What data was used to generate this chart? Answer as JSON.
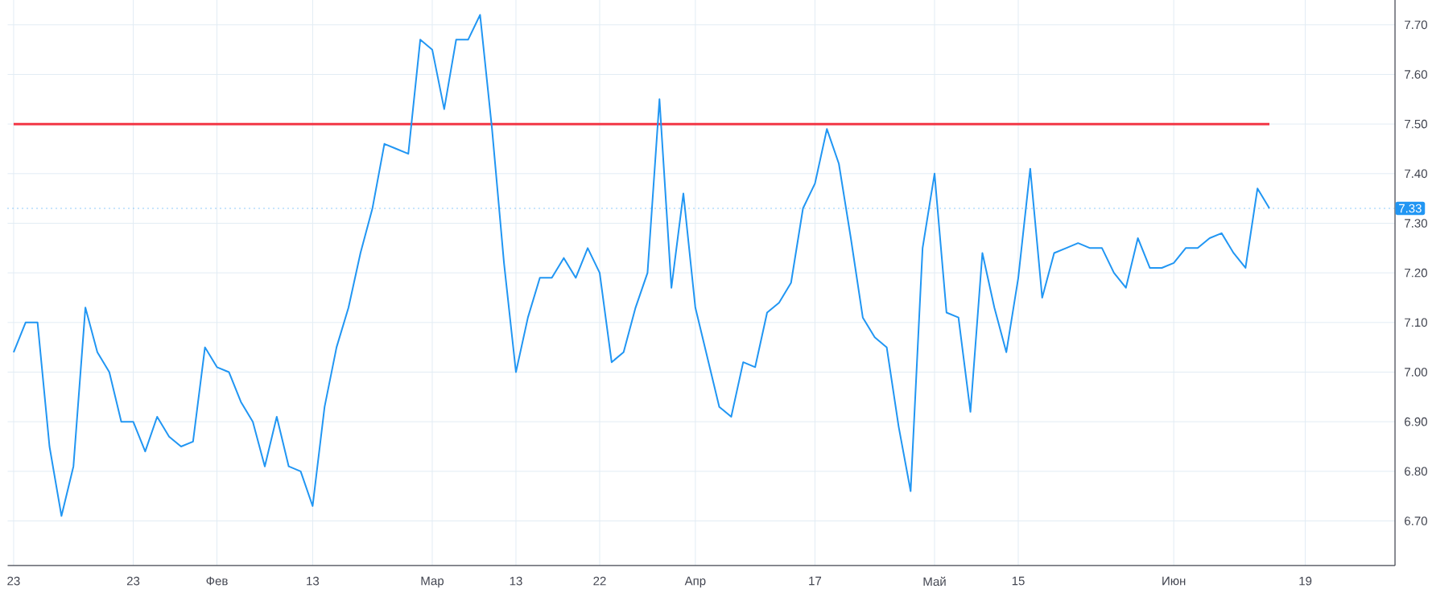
{
  "chart_data": {
    "type": "line",
    "categories": [
      "23",
      null,
      null,
      null,
      null,
      null,
      null,
      null,
      null,
      null,
      "23",
      null,
      null,
      null,
      null,
      null,
      null,
      "Фев",
      null,
      null,
      null,
      null,
      null,
      null,
      null,
      "13",
      null,
      null,
      null,
      null,
      null,
      null,
      null,
      null,
      null,
      "Мар",
      null,
      null,
      null,
      null,
      null,
      null,
      "13",
      null,
      null,
      null,
      null,
      null,
      null,
      "22",
      null,
      null,
      null,
      null,
      null,
      null,
      null,
      "Апр",
      null,
      null,
      null,
      null,
      null,
      null,
      null,
      null,
      null,
      "17",
      null,
      null,
      null,
      null,
      null,
      null,
      null,
      null,
      null,
      "Май",
      null,
      null,
      null,
      null,
      null,
      null,
      "15",
      null,
      null,
      null,
      null,
      null,
      null,
      null,
      null,
      null,
      null,
      null,
      null,
      "Июн",
      null,
      null,
      null,
      null,
      null,
      null,
      null,
      null,
      null,
      null,
      "19",
      null,
      null,
      null,
      null,
      null,
      null,
      null
    ],
    "values": [
      7.04,
      7.1,
      7.1,
      6.85,
      6.71,
      6.81,
      7.13,
      7.04,
      7.0,
      6.9,
      6.9,
      6.84,
      6.91,
      6.87,
      6.85,
      6.86,
      7.05,
      7.01,
      7.0,
      6.94,
      6.9,
      6.81,
      6.91,
      6.81,
      6.8,
      6.73,
      6.93,
      7.05,
      7.13,
      7.24,
      7.33,
      7.46,
      7.45,
      7.44,
      7.67,
      7.65,
      7.53,
      7.67,
      7.67,
      7.72,
      7.49,
      7.22,
      7.0,
      7.11,
      7.19,
      7.19,
      7.23,
      7.19,
      7.25,
      7.2,
      7.02,
      7.04,
      7.13,
      7.2,
      7.55,
      7.17,
      7.36,
      7.13,
      7.03,
      6.93,
      6.91,
      7.02,
      7.01,
      7.12,
      7.14,
      7.18,
      7.33,
      7.38,
      7.49,
      7.42,
      7.27,
      7.11,
      7.07,
      7.05,
      6.89,
      6.76,
      7.25,
      7.4,
      7.12,
      7.11,
      6.92,
      7.24,
      7.13,
      7.04,
      7.19,
      7.41,
      7.15,
      7.24,
      7.25,
      7.26,
      7.25,
      7.25,
      7.2,
      7.17,
      7.27,
      7.21,
      7.21,
      7.22,
      7.25,
      7.25,
      7.27,
      7.28,
      7.24,
      7.21,
      7.37,
      7.33,
      null,
      null,
      null,
      null,
      null,
      null,
      null,
      null,
      null,
      null
    ],
    "color": "#2196f3",
    "ylim": [
      6.61,
      7.75
    ],
    "yticks": [
      {
        "value": 6.7,
        "label": "6.70"
      },
      {
        "value": 6.8,
        "label": "6.80"
      },
      {
        "value": 6.9,
        "label": "6.90"
      },
      {
        "value": 7.0,
        "label": "7.00"
      },
      {
        "value": 7.1,
        "label": "7.10"
      },
      {
        "value": 7.2,
        "label": "7.20"
      },
      {
        "value": 7.3,
        "label": "7.30"
      },
      {
        "value": 7.4,
        "label": "7.40"
      },
      {
        "value": 7.5,
        "label": "7.50"
      },
      {
        "value": 7.6,
        "label": "7.60"
      },
      {
        "value": 7.7,
        "label": "7.70"
      }
    ],
    "ref_lines": [
      {
        "axis": "y",
        "value": 7.5,
        "color": "#f23645",
        "line_style": "solid"
      },
      {
        "axis": "y",
        "value": 7.33,
        "label": "7.33",
        "color": "#2196f3",
        "line_style": "dotted"
      }
    ],
    "grid": true,
    "line_style": "solid",
    "marker": "none"
  }
}
